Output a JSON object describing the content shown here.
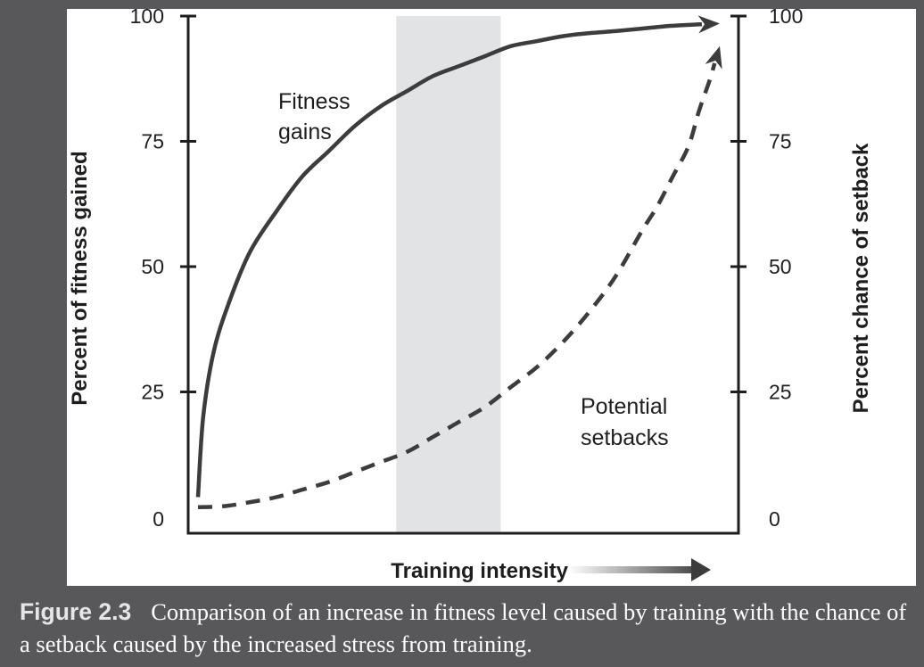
{
  "chart_data": {
    "type": "line",
    "xlabel": "Training intensity",
    "ylabel_left": "Percent of fitness gained",
    "ylabel_right": "Percent chance of setback",
    "y_ticks": [
      "0",
      "25",
      "50",
      "75",
      "100"
    ],
    "ylim": [
      0,
      100
    ],
    "xlim": [
      0,
      1
    ],
    "grid": false,
    "highlight_band": {
      "x_start": 0.38,
      "x_end": 0.58,
      "color": "#e2e3e5"
    },
    "series": [
      {
        "name": "Fitness gains",
        "axis": "left",
        "style": "solid",
        "label": "Fitness\ngains",
        "x": [
          0.0,
          0.01,
          0.03,
          0.06,
          0.1,
          0.15,
          0.2,
          0.25,
          0.3,
          0.35,
          0.4,
          0.45,
          0.5,
          0.55,
          0.6,
          0.65,
          0.7,
          0.75,
          0.8,
          0.85,
          0.9,
          0.95,
          1.0
        ],
        "y": [
          4,
          20,
          33,
          43,
          53,
          61,
          68,
          73,
          78,
          82,
          85,
          88,
          90,
          92,
          94,
          95,
          96,
          96.6,
          97,
          97.5,
          98,
          98.3,
          98.5
        ]
      },
      {
        "name": "Potential setbacks",
        "axis": "right",
        "style": "dashed",
        "label": "Potential\nsetbacks",
        "x": [
          0.0,
          0.05,
          0.1,
          0.15,
          0.2,
          0.25,
          0.3,
          0.35,
          0.4,
          0.45,
          0.5,
          0.55,
          0.6,
          0.65,
          0.7,
          0.75,
          0.8,
          0.85,
          0.88,
          0.91,
          0.94,
          0.96,
          0.98,
          1.0
        ],
        "y": [
          2,
          2.2,
          3,
          4,
          5.5,
          7,
          9,
          11,
          13,
          16,
          19,
          22,
          26,
          30,
          35,
          41,
          48,
          57,
          62,
          68,
          74,
          81,
          87,
          94
        ]
      }
    ],
    "colors": {
      "line": "#3c3c3c",
      "axis": "#1e1e1e",
      "arrow_gradient": [
        "#ffffff",
        "#3c3c3c"
      ]
    }
  },
  "caption": {
    "label": "Figure 2.3",
    "text": "Comparison of an increase in fitness level caused by training with the chance of a setback caused by the increased stress from training."
  }
}
